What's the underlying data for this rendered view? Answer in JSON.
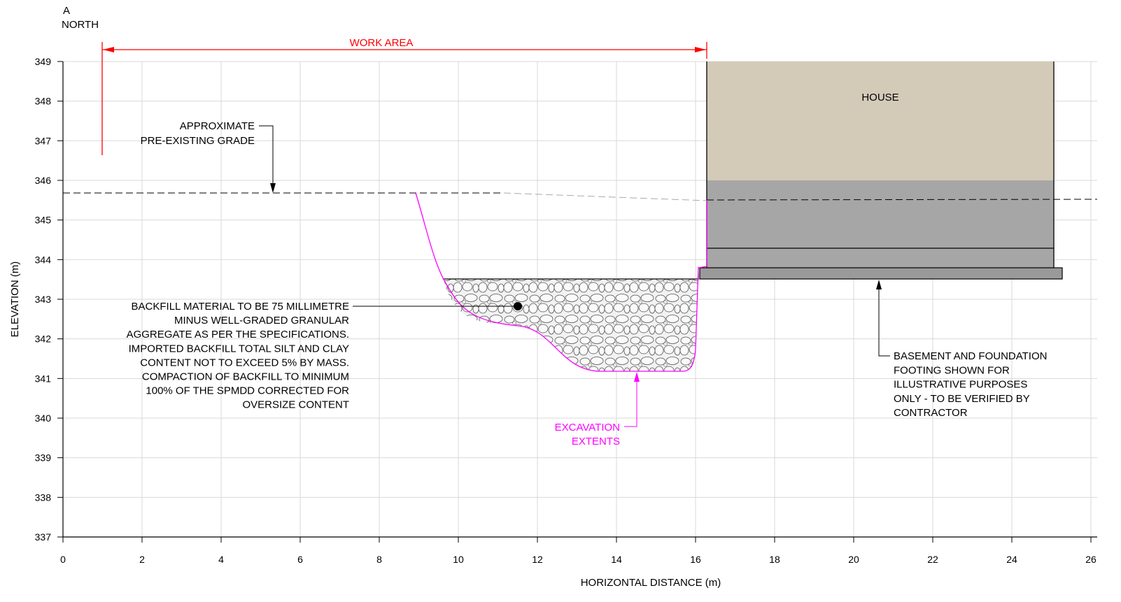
{
  "section": {
    "id": "A",
    "direction": "NORTH"
  },
  "work_area_label": "WORK AREA",
  "house_label": "HOUSE",
  "callouts": {
    "grade": [
      "APPROXIMATE",
      "PRE-EXISTING GRADE"
    ],
    "backfill": [
      "BACKFILL MATERIAL TO BE 75 MILLIMETRE",
      "MINUS WELL-GRADED GRANULAR",
      "AGGREGATE AS PER THE SPECIFICATIONS.",
      "IMPORTED BACKFILL TOTAL SILT AND CLAY",
      "CONTENT NOT TO EXCEED 5% BY MASS.",
      "COMPACTION OF BACKFILL TO MINIMUM",
      "100% OF THE SPMDD CORRECTED FOR",
      "OVERSIZE CONTENT"
    ],
    "excavation": [
      "EXCAVATION",
      "EXTENTS"
    ],
    "basement": [
      "BASEMENT AND FOUNDATION",
      "FOOTING SHOWN FOR",
      "ILLUSTRATIVE PURPOSES",
      "ONLY - TO BE VERIFIED BY",
      "CONTRACTOR"
    ]
  },
  "axes": {
    "x_label": "HORIZONTAL DISTANCE (m)",
    "y_label": "ELEVATION (m)",
    "x_ticks": [
      "0",
      "2",
      "4",
      "6",
      "8",
      "10",
      "12",
      "14",
      "16",
      "18",
      "20",
      "22",
      "24",
      "26"
    ],
    "y_ticks": [
      "337",
      "338",
      "339",
      "340",
      "341",
      "342",
      "343",
      "344",
      "345",
      "346",
      "347",
      "348",
      "349"
    ],
    "x_range": [
      0,
      26
    ],
    "y_range": [
      337,
      349
    ]
  },
  "colors": {
    "work_area": "#ff0000",
    "excavation": "#ff00ff",
    "house_upper": "#d3cab8",
    "basement": "#a6a6a6",
    "footing": "#9a9a9a",
    "grid": "#d9d9d9"
  }
}
